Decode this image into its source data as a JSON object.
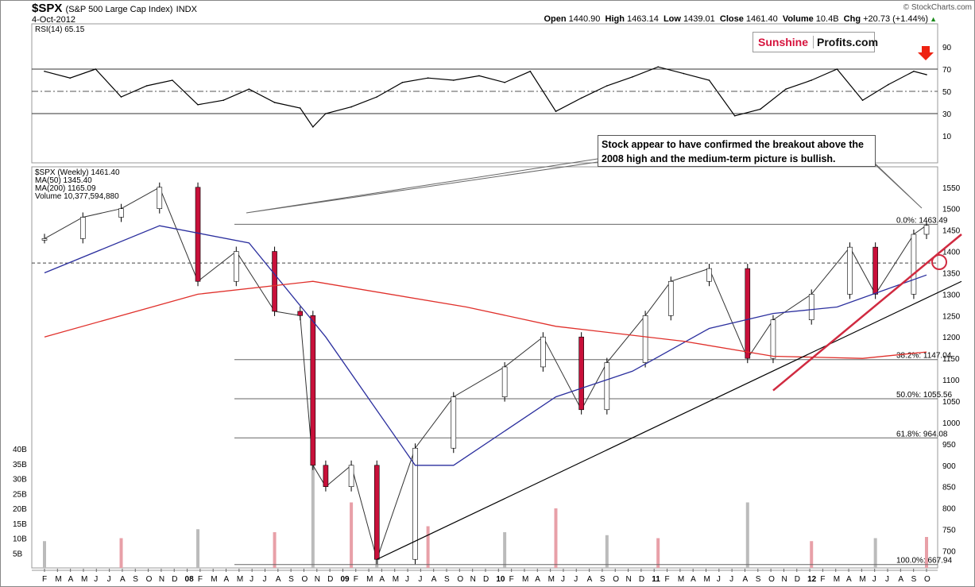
{
  "header": {
    "symbol": "$SPX",
    "name": "(S&P 500 Large Cap Index)",
    "exchange": "INDX",
    "date": "4-Oct-2012",
    "source": "© StockCharts.com",
    "open_label": "Open",
    "open": "1440.90",
    "high_label": "High",
    "high": "1463.14",
    "low_label": "Low",
    "low": "1439.01",
    "close_label": "Close",
    "close": "1461.40",
    "volume_label": "Volume",
    "volume": "10.4B",
    "chg_label": "Chg",
    "chg": "+20.73 (+1.44%)"
  },
  "logo": {
    "left": "Sunshine",
    "right": "Profits.com"
  },
  "annotation": "Stock appear to have confirmed the breakout above the 2008 high and the medium-term picture is bullish.",
  "colors": {
    "up": "#ffffff",
    "down": "#c8103a",
    "ma50": "#2b2f9e",
    "ma200": "#e0302b",
    "trend_red": "#d02a40",
    "rsi_up": "#2f8f3a",
    "rsi_down": "#9b3b3b"
  },
  "chart_data": [
    {
      "type": "line",
      "panel": "RSI",
      "legend": "RSI(14) 65.15",
      "yticks": [
        10,
        30,
        50,
        70,
        90
      ],
      "levels": [
        30,
        50,
        70
      ],
      "ylim": [
        0,
        100
      ],
      "x": [
        "2007-01",
        "2007-03",
        "2007-05",
        "2007-07",
        "2007-09",
        "2007-11",
        "2008-01",
        "2008-03",
        "2008-05",
        "2008-07",
        "2008-09",
        "2008-10",
        "2008-11",
        "2009-01",
        "2009-03",
        "2009-05",
        "2009-07",
        "2009-09",
        "2009-11",
        "2010-01",
        "2010-03",
        "2010-05",
        "2010-07",
        "2010-09",
        "2010-11",
        "2011-01",
        "2011-03",
        "2011-05",
        "2011-07",
        "2011-09",
        "2011-11",
        "2012-01",
        "2012-03",
        "2012-05",
        "2012-07",
        "2012-09",
        "2012-10"
      ],
      "values": [
        68,
        62,
        70,
        45,
        55,
        60,
        38,
        42,
        52,
        40,
        35,
        18,
        30,
        36,
        45,
        58,
        62,
        60,
        64,
        58,
        68,
        32,
        44,
        55,
        63,
        72,
        66,
        60,
        28,
        34,
        52,
        60,
        70,
        42,
        56,
        68,
        65
      ]
    },
    {
      "type": "candlestick",
      "panel": "Price (weekly)",
      "legend": [
        "$SPX (Weekly) 1461.40",
        "MA(50) 1345.40",
        "MA(200) 1165.09",
        "Volume 10,377,594,880"
      ],
      "yticks": [
        700,
        750,
        800,
        850,
        900,
        950,
        1000,
        1050,
        1100,
        1150,
        1200,
        1250,
        1300,
        1350,
        1400,
        1450,
        1500,
        1550
      ],
      "ylim": [
        660,
        1570
      ],
      "price_series": {
        "x": [
          "2007-01",
          "2007-04",
          "2007-07",
          "2007-10",
          "2008-01",
          "2008-04",
          "2008-07",
          "2008-09",
          "2008-10",
          "2008-11",
          "2009-01",
          "2009-03",
          "2009-06",
          "2009-09",
          "2010-01",
          "2010-04",
          "2010-07",
          "2010-09",
          "2010-12",
          "2011-02",
          "2011-05",
          "2011-08",
          "2011-10",
          "2012-01",
          "2012-04",
          "2012-06",
          "2012-09",
          "2012-10"
        ],
        "values": [
          1430,
          1480,
          1500,
          1550,
          1330,
          1400,
          1260,
          1250,
          900,
          850,
          900,
          680,
          940,
          1060,
          1130,
          1200,
          1030,
          1140,
          1250,
          1330,
          1360,
          1150,
          1240,
          1300,
          1410,
          1300,
          1440,
          1461
        ]
      },
      "ma50": {
        "x": [
          "2007-01",
          "2007-10",
          "2008-05",
          "2008-11",
          "2009-06",
          "2009-09",
          "2010-05",
          "2010-11",
          "2011-05",
          "2011-10",
          "2012-03",
          "2012-10"
        ],
        "values": [
          1350,
          1460,
          1420,
          1200,
          900,
          900,
          1060,
          1120,
          1220,
          1255,
          1270,
          1345
        ]
      },
      "ma200": {
        "x": [
          "2007-01",
          "2008-01",
          "2008-10",
          "2009-10",
          "2010-05",
          "2011-03",
          "2011-10",
          "2012-05",
          "2012-10"
        ],
        "values": [
          1200,
          1300,
          1330,
          1270,
          1225,
          1190,
          1155,
          1150,
          1165
        ]
      },
      "fibonacci": [
        {
          "label": "0.0%: 1463.49",
          "value": 1463.49
        },
        {
          "label": "38.2%: 1147.04",
          "value": 1147.04
        },
        {
          "label": "50.0%: 1055.56",
          "value": 1055.56
        },
        {
          "label": "61.8%: 964.08",
          "value": 964.08
        },
        {
          "label": "100.0%: 667.94",
          "value": 667.94
        }
      ],
      "horizontal_line_2008_high": 1373
    },
    {
      "type": "bar",
      "panel": "Volume",
      "yticks": [
        "40B",
        "35B",
        "30B",
        "25B",
        "20B",
        "15B",
        "10B",
        "5B"
      ],
      "x": [
        "2007-01",
        "2007-07",
        "2008-01",
        "2008-07",
        "2008-10",
        "2009-01",
        "2009-03",
        "2009-07",
        "2010-01",
        "2010-05",
        "2010-09",
        "2011-01",
        "2011-08",
        "2012-01",
        "2012-06",
        "2012-10"
      ],
      "values": [
        9,
        10,
        13,
        12,
        38,
        22,
        25,
        14,
        12,
        20,
        11,
        10,
        22,
        9,
        10,
        10.4
      ]
    }
  ],
  "x_axis": {
    "labels": [
      "F",
      "M",
      "A",
      "M",
      "J",
      "J",
      "A",
      "S",
      "O",
      "N",
      "D",
      "08",
      "F",
      "M",
      "A",
      "M",
      "J",
      "J",
      "A",
      "S",
      "O",
      "N",
      "D",
      "09",
      "F",
      "M",
      "A",
      "M",
      "J",
      "J",
      "A",
      "S",
      "O",
      "N",
      "D",
      "10",
      "F",
      "M",
      "A",
      "M",
      "J",
      "J",
      "A",
      "S",
      "O",
      "N",
      "D",
      "11",
      "F",
      "M",
      "A",
      "M",
      "J",
      "J",
      "A",
      "S",
      "O",
      "N",
      "D",
      "12",
      "F",
      "M",
      "A",
      "M",
      "J",
      "J",
      "A",
      "S",
      "O"
    ]
  }
}
